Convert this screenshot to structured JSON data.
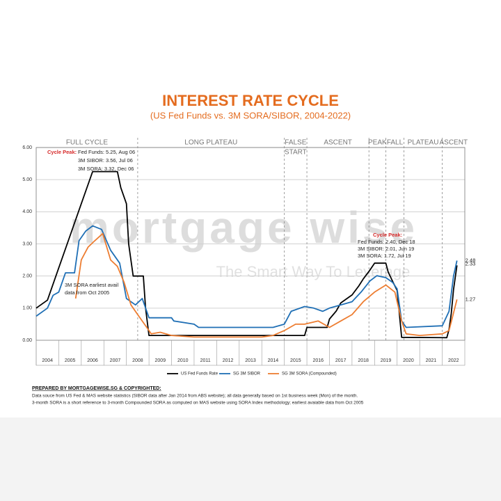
{
  "chart_data": {
    "type": "line",
    "title": "INTEREST RATE CYCLE",
    "subtitle": "(US Fed Funds vs. 3M SORA/SIBOR, 2004-2022)",
    "xlim": [
      2004,
      2023
    ],
    "xticks": [
      2004,
      2005,
      2006,
      2007,
      2008,
      2009,
      2010,
      2011,
      2012,
      2013,
      2014,
      2015,
      2016,
      2017,
      2018,
      2019,
      2020,
      2021,
      2022
    ],
    "ylim": [
      0,
      6
    ],
    "yticks": [
      {
        "value": 0,
        "label": "0.00"
      },
      {
        "value": 1,
        "label": "1.00"
      },
      {
        "value": 2,
        "label": "2.00"
      },
      {
        "value": 3,
        "label": "3.00"
      },
      {
        "value": 4,
        "label": "4.00"
      },
      {
        "value": 5,
        "label": "5.00"
      },
      {
        "value": 6,
        "label": "6.00"
      }
    ],
    "grid": true,
    "phases": [
      [
        "FULL CYCLE"
      ],
      [
        "LONG PLATEAU"
      ],
      [
        "FALSE",
        "START"
      ],
      [
        "ASCENT"
      ],
      [
        "PEAK"
      ],
      [
        "FALL"
      ],
      [
        "PLATEAU"
      ],
      [
        "ASCENT"
      ]
    ],
    "phase_bounds": [
      2008.5,
      2015.0,
      2016.0,
      2018.75,
      2019.5,
      2020.3,
      2022.0
    ],
    "series": [
      {
        "name": "US Fed Funds Rate",
        "color": "#000000",
        "end_label": 2.33,
        "x": [
          2004.0,
          2004.5,
          2004.75,
          2005.0,
          2005.5,
          2006.0,
          2006.5,
          2007.0,
          2007.6,
          2007.75,
          2008.0,
          2008.1,
          2008.3,
          2008.75,
          2008.85,
          2009.0,
          2015.9,
          2016.0,
          2016.9,
          2017.0,
          2017.3,
          2017.5,
          2018.0,
          2018.3,
          2018.5,
          2018.8,
          2019.0,
          2019.5,
          2019.6,
          2019.8,
          2020.0,
          2020.2,
          2022.2,
          2022.3,
          2022.4,
          2022.5,
          2022.65
        ],
        "values": [
          1.0,
          1.25,
          1.75,
          2.25,
          3.25,
          4.25,
          5.25,
          5.25,
          5.25,
          4.75,
          4.25,
          3.0,
          2.0,
          2.0,
          1.0,
          0.15,
          0.15,
          0.4,
          0.4,
          0.66,
          0.91,
          1.16,
          1.41,
          1.69,
          1.91,
          2.19,
          2.4,
          2.4,
          2.13,
          1.83,
          1.55,
          0.09,
          0.08,
          0.33,
          0.83,
          1.58,
          2.33
        ]
      },
      {
        "name": "SG 3M SIBOR",
        "color": "#1f6fb5",
        "end_label": 2.48,
        "x": [
          2004.0,
          2004.5,
          2004.75,
          2005.0,
          2005.3,
          2005.7,
          2005.9,
          2006.2,
          2006.5,
          2006.9,
          2007.3,
          2007.7,
          2008.0,
          2008.4,
          2008.7,
          2008.9,
          2009.0,
          2010.0,
          2010.1,
          2011.0,
          2011.2,
          2013.0,
          2014.5,
          2015.0,
          2015.3,
          2015.9,
          2016.3,
          2016.7,
          2017.0,
          2017.5,
          2018.0,
          2018.4,
          2018.8,
          2019.1,
          2019.5,
          2019.8,
          2020.0,
          2020.2,
          2020.4,
          2022.0,
          2022.3,
          2022.5,
          2022.65
        ],
        "values": [
          0.75,
          1.0,
          1.4,
          1.5,
          2.1,
          2.1,
          3.1,
          3.4,
          3.56,
          3.45,
          2.8,
          2.4,
          1.3,
          1.1,
          1.3,
          0.9,
          0.7,
          0.7,
          0.6,
          0.5,
          0.4,
          0.4,
          0.4,
          0.5,
          0.9,
          1.05,
          1.0,
          0.9,
          1.0,
          1.1,
          1.2,
          1.5,
          1.85,
          2.01,
          1.95,
          1.8,
          1.6,
          0.6,
          0.4,
          0.45,
          0.9,
          2.0,
          2.48
        ]
      },
      {
        "name": "SG 3M SORA (Compounded)",
        "color": "#ed7d31",
        "end_label": 1.27,
        "x": [
          2005.75,
          2006.0,
          2006.3,
          2006.6,
          2006.95,
          2007.3,
          2007.6,
          2007.9,
          2008.2,
          2008.5,
          2008.9,
          2009.1,
          2009.5,
          2010.0,
          2011.0,
          2012.0,
          2014.0,
          2014.5,
          2015.0,
          2015.5,
          2015.9,
          2016.5,
          2017.0,
          2017.5,
          2018.0,
          2018.5,
          2019.0,
          2019.5,
          2019.9,
          2020.2,
          2020.4,
          2021.0,
          2022.0,
          2022.3,
          2022.65
        ],
        "values": [
          1.3,
          2.5,
          2.9,
          3.1,
          3.32,
          2.5,
          2.3,
          1.8,
          1.1,
          0.8,
          0.4,
          0.2,
          0.25,
          0.15,
          0.1,
          0.1,
          0.1,
          0.15,
          0.3,
          0.5,
          0.5,
          0.6,
          0.4,
          0.6,
          0.8,
          1.2,
          1.5,
          1.72,
          1.5,
          0.6,
          0.2,
          0.15,
          0.2,
          0.3,
          1.27
        ]
      }
    ],
    "peak1": {
      "heading": "Cycle Peak:",
      "lines": [
        "Fed Funds: 5.25, Aug 06",
        "3M SIBOR: 3.56, Jul 06",
        "3M SORA: 3.32, Dec 06"
      ]
    },
    "peak2": {
      "heading": "Cycle Peak:",
      "lines": [
        "Fed Funds: 2.40, Dec 18",
        "3M SIBOR: 2.01, Jun 19",
        "3M SORA: 1.72, Jul 19"
      ]
    },
    "sora_note": [
      "3M SORA earliest avail",
      "data from Oct 2005"
    ],
    "watermark": "mortgage wise",
    "watermark_tagline": "The Smart Way To Leverage",
    "footer": {
      "heading": "PREPARED BY MORTGAGEWISE.SG & COPYRIGHTED:",
      "lines": [
        "Data souce from US Fed & MAS website statistics (SIBOR data after Jan 2014 from ABS website); all data generally based on 1st business week (Mon) of the month.",
        "3-month SORA is a short reference to 3-month Compounded SORA as computed on MAS website using SORA Index methodology; earliest avaiable data from Oct 2005"
      ]
    }
  }
}
